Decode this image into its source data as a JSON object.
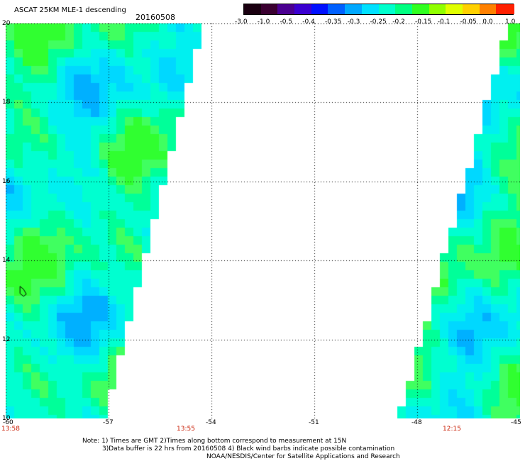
{
  "header": {
    "title": "ASCAT 25KM MLE-1 descending",
    "date": "20160508"
  },
  "colorbar": {
    "colors": [
      "#1a0010",
      "#3a0030",
      "#4a0090",
      "#3a00d0",
      "#0010ff",
      "#0060ff",
      "#00a8ff",
      "#00e0ff",
      "#00ffcc",
      "#00ff80",
      "#30ff20",
      "#90ff00",
      "#e0ff00",
      "#ffd000",
      "#ff8000",
      "#ff2000"
    ],
    "labels": [
      "-3.0",
      "-1.0",
      "-0.5",
      "-0.4",
      "-0.35",
      "-0.3",
      "-0.25",
      "-0.2",
      "-0.15",
      "-0.1",
      "-0.05",
      "0.0",
      "1.0"
    ]
  },
  "map": {
    "lat_labels": [
      "20",
      "18",
      "16",
      "14",
      "12",
      "10"
    ],
    "lon_labels": [
      "-60",
      "-57",
      "-54",
      "-51",
      "-48",
      "-45"
    ],
    "lat_range": [
      10,
      20
    ],
    "lon_range": [
      -60,
      -45
    ],
    "times": [
      "13:58",
      "13:55",
      "12:15"
    ],
    "grid": "dotted",
    "swaths": [
      {
        "name": "west",
        "lon_edge_north": -54.2,
        "lon_edge_south": -57.1
      },
      {
        "name": "east",
        "lon_edge_north": -45.4,
        "lon_edge_south": -48.6
      }
    ]
  },
  "notes": [
    "Note: 1) Times are GMT 2)Times along bottom correspond to measurement at 15N",
    "3)Data buffer is 22 hrs from 20160508 4) Black wind barbs indicate possible contamination",
    "NOAA/NESDIS/Center for Satellite Applications and Research"
  ]
}
